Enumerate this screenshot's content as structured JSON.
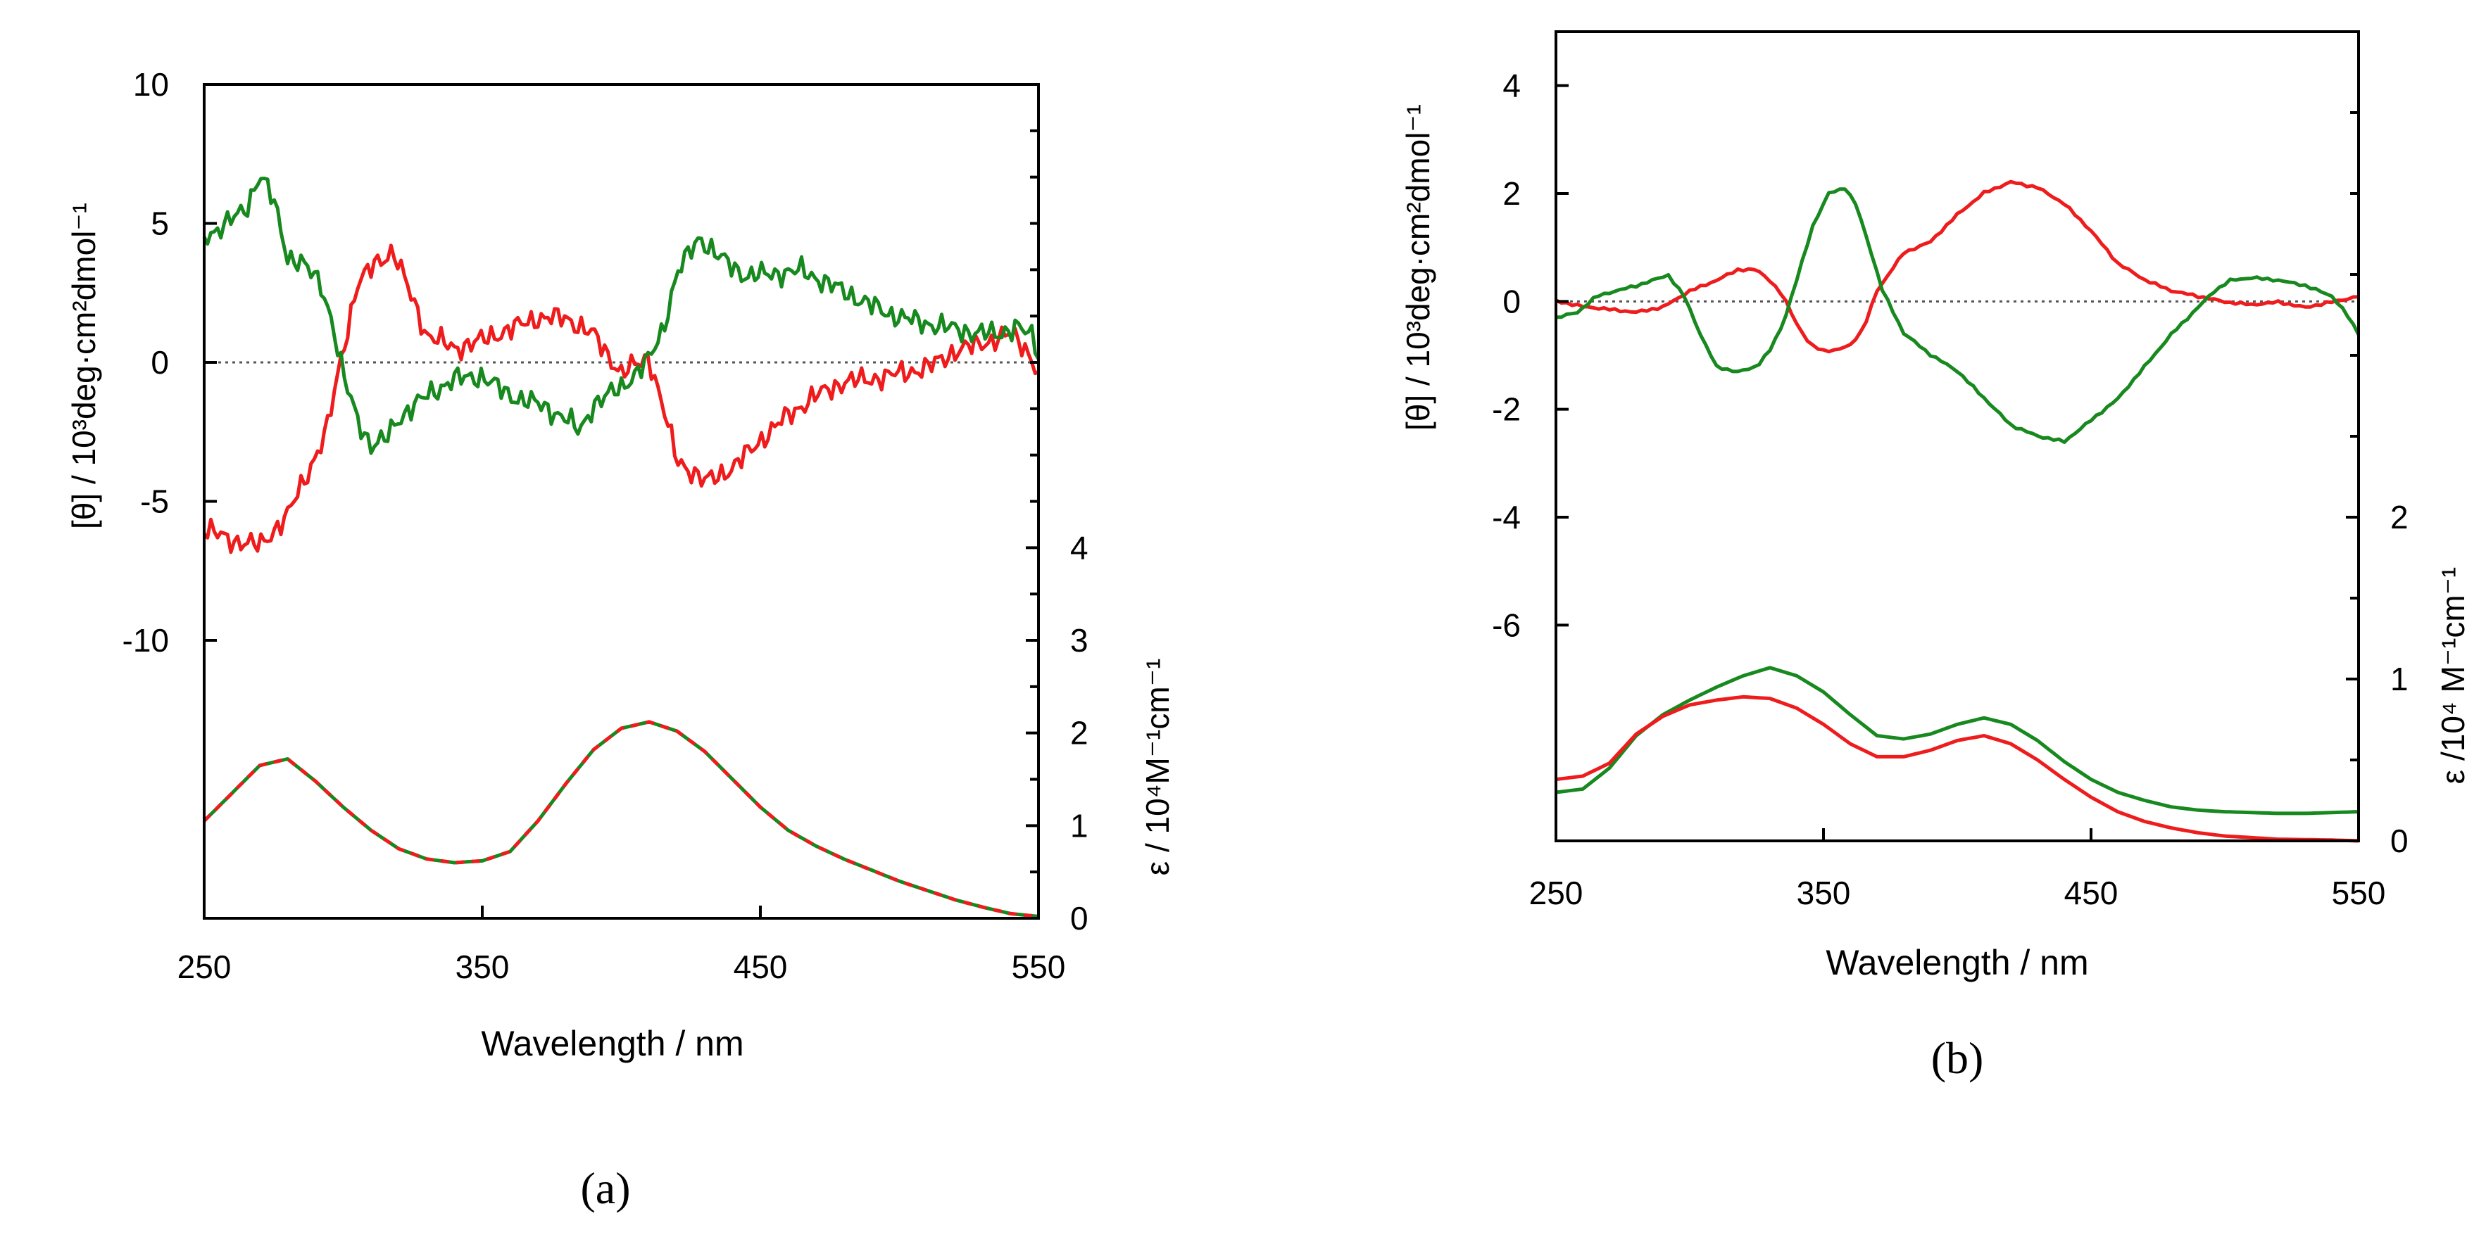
{
  "chart_data": [
    {
      "type": "line",
      "panel_label": "(a)",
      "xlabel": "Wavelength / nm",
      "ylabel_left": "[θ] / 10³deg·cm²dmol⁻¹",
      "ylabel_right": "ε / 10⁴M⁻¹cm⁻¹",
      "xlim": [
        250,
        550
      ],
      "xticks": [
        "250",
        "350",
        "450",
        "550"
      ],
      "ylim_left": [
        -20,
        10
      ],
      "yticks_left": [
        "10",
        "5",
        "0",
        "-5",
        "-10"
      ],
      "ylim_right": [
        0,
        9
      ],
      "yticks_right": [
        "0",
        "1",
        "2",
        "3",
        "4"
      ],
      "zero_line": 0,
      "colors": {
        "red": "#ee1c1c",
        "green": "#17891f"
      },
      "cd_series": [
        {
          "name": "red CD",
          "color": "#ee1c1c",
          "x": [
            250,
            260,
            270,
            280,
            288,
            294,
            300,
            305,
            312,
            318,
            322,
            330,
            340,
            350,
            360,
            370,
            380,
            390,
            400,
            410,
            420,
            430,
            440,
            450,
            460,
            470,
            480,
            490,
            500,
            510,
            520,
            530,
            540,
            545,
            550
          ],
          "y": [
            -6.0,
            -6.4,
            -6.6,
            -5.5,
            -3.8,
            -2.5,
            0.5,
            2.8,
            3.6,
            4.0,
            3.0,
            1.0,
            0.5,
            0.8,
            1.2,
            1.6,
            1.6,
            1.0,
            -0.4,
            0.2,
            -3.5,
            -4.3,
            -3.8,
            -2.8,
            -1.9,
            -1.2,
            -0.7,
            -0.6,
            -0.4,
            -0.2,
            0.4,
            0.7,
            1.0,
            0.6,
            -0.4
          ]
        },
        {
          "name": "green CD",
          "color": "#17891f",
          "x": [
            250,
            258,
            265,
            270,
            275,
            280,
            285,
            292,
            296,
            300,
            305,
            310,
            315,
            320,
            330,
            340,
            350,
            360,
            370,
            380,
            385,
            390,
            400,
            410,
            415,
            420,
            428,
            435,
            445,
            455,
            465,
            475,
            485,
            495,
            505,
            515,
            525,
            535,
            542,
            548,
            550
          ],
          "y": [
            4.5,
            5.0,
            5.5,
            6.8,
            5.8,
            3.8,
            3.6,
            2.8,
            1.5,
            -0.5,
            -2.0,
            -3.0,
            -2.8,
            -2.0,
            -1.2,
            -0.6,
            -0.5,
            -1.2,
            -1.5,
            -2.0,
            -2.5,
            -1.5,
            -0.9,
            0.1,
            1.2,
            3.2,
            4.5,
            3.8,
            3.1,
            3.2,
            3.3,
            2.8,
            2.3,
            1.8,
            1.5,
            1.3,
            1.1,
            1.0,
            1.3,
            0.9,
            0.3
          ]
        }
      ],
      "abs_series": [
        {
          "name": "green absorption",
          "color": "#17891f",
          "style": "solid",
          "x": [
            250,
            260,
            270,
            280,
            290,
            300,
            310,
            320,
            330,
            340,
            350,
            360,
            370,
            380,
            390,
            400,
            410,
            420,
            430,
            440,
            450,
            460,
            470,
            480,
            490,
            500,
            510,
            520,
            530,
            540,
            550
          ],
          "y": [
            1.05,
            1.35,
            1.65,
            1.72,
            1.48,
            1.2,
            0.95,
            0.75,
            0.64,
            0.6,
            0.62,
            0.72,
            1.05,
            1.45,
            1.82,
            2.05,
            2.12,
            2.02,
            1.8,
            1.5,
            1.2,
            0.95,
            0.78,
            0.64,
            0.52,
            0.4,
            0.3,
            0.2,
            0.12,
            0.05,
            0.02
          ]
        },
        {
          "name": "red absorption",
          "color": "#ee1c1c",
          "style": "dashed",
          "x": [
            250,
            260,
            270,
            280,
            290,
            300,
            310,
            320,
            330,
            340,
            350,
            360,
            370,
            380,
            390,
            400,
            410,
            420,
            430,
            440,
            450,
            460,
            470,
            480,
            490,
            500,
            510,
            520,
            530,
            540,
            550
          ],
          "y": [
            1.05,
            1.35,
            1.65,
            1.72,
            1.48,
            1.2,
            0.95,
            0.75,
            0.64,
            0.6,
            0.62,
            0.72,
            1.05,
            1.45,
            1.82,
            2.05,
            2.12,
            2.02,
            1.8,
            1.5,
            1.2,
            0.95,
            0.78,
            0.64,
            0.52,
            0.4,
            0.3,
            0.2,
            0.12,
            0.05,
            0.02
          ]
        }
      ]
    },
    {
      "type": "line",
      "panel_label": "(b)",
      "xlabel": "Wavelength / nm",
      "ylabel_left": "[θ] / 10³deg·cm²dmol⁻¹",
      "ylabel_right": "ε /10⁴ M⁻¹cm⁻¹",
      "xlim": [
        250,
        550
      ],
      "xticks": [
        "250",
        "350",
        "450",
        "550"
      ],
      "ylim_left": [
        -10,
        5
      ],
      "yticks_left": [
        "4",
        "2",
        "0",
        "-2",
        "-4",
        "-6"
      ],
      "ylim_right": [
        0,
        5
      ],
      "yticks_right": [
        "0",
        "1",
        "2"
      ],
      "zero_line": 0,
      "cd_series": [
        {
          "name": "red CD",
          "color": "#ee1c1c",
          "x": [
            250,
            260,
            270,
            280,
            290,
            300,
            310,
            318,
            325,
            330,
            335,
            340,
            345,
            350,
            355,
            360,
            365,
            370,
            380,
            390,
            400,
            410,
            420,
            430,
            440,
            450,
            460,
            470,
            480,
            490,
            500,
            510,
            520,
            530,
            540,
            550
          ],
          "y": [
            0.0,
            -0.1,
            -0.15,
            -0.2,
            -0.1,
            0.2,
            0.4,
            0.6,
            0.6,
            0.4,
            0.1,
            -0.4,
            -0.8,
            -0.9,
            -0.9,
            -0.8,
            -0.5,
            0.2,
            0.9,
            1.1,
            1.6,
            2.0,
            2.2,
            2.1,
            1.8,
            1.3,
            0.7,
            0.4,
            0.2,
            0.1,
            0.0,
            -0.05,
            0.0,
            -0.1,
            0.0,
            0.1
          ]
        },
        {
          "name": "green CD",
          "color": "#17891f",
          "x": [
            250,
            258,
            265,
            272,
            280,
            286,
            292,
            298,
            304,
            310,
            318,
            325,
            330,
            335,
            340,
            346,
            352,
            358,
            362,
            366,
            372,
            380,
            390,
            400,
            410,
            420,
            430,
            440,
            450,
            460,
            470,
            480,
            490,
            496,
            502,
            510,
            520,
            530,
            540,
            545,
            550
          ],
          "y": [
            -0.3,
            -0.2,
            0.1,
            0.2,
            0.3,
            0.4,
            0.5,
            0.1,
            -0.6,
            -1.2,
            -1.3,
            -1.2,
            -0.9,
            -0.4,
            0.4,
            1.4,
            2.0,
            2.1,
            1.8,
            1.2,
            0.2,
            -0.6,
            -1.0,
            -1.3,
            -1.8,
            -2.3,
            -2.5,
            -2.6,
            -2.2,
            -1.8,
            -1.2,
            -0.6,
            -0.1,
            0.2,
            0.4,
            0.45,
            0.4,
            0.3,
            0.1,
            -0.2,
            -0.6
          ]
        }
      ],
      "abs_series": [
        {
          "name": "green absorption",
          "color": "#17891f",
          "x": [
            250,
            260,
            270,
            280,
            290,
            300,
            310,
            320,
            330,
            340,
            350,
            360,
            370,
            380,
            390,
            400,
            410,
            420,
            430,
            440,
            450,
            460,
            470,
            480,
            490,
            500,
            510,
            520,
            530,
            540,
            550
          ],
          "y": [
            0.3,
            0.32,
            0.45,
            0.65,
            0.78,
            0.87,
            0.95,
            1.02,
            1.07,
            1.02,
            0.92,
            0.78,
            0.65,
            0.63,
            0.66,
            0.72,
            0.76,
            0.72,
            0.62,
            0.49,
            0.38,
            0.3,
            0.25,
            0.21,
            0.19,
            0.18,
            0.175,
            0.17,
            0.17,
            0.175,
            0.18
          ]
        },
        {
          "name": "red absorption",
          "color": "#ee1c1c",
          "x": [
            250,
            260,
            270,
            280,
            290,
            300,
            310,
            320,
            330,
            340,
            350,
            360,
            370,
            380,
            390,
            400,
            410,
            420,
            430,
            440,
            450,
            460,
            470,
            480,
            490,
            500,
            510,
            520,
            530,
            540,
            550
          ],
          "y": [
            0.38,
            0.4,
            0.48,
            0.66,
            0.77,
            0.84,
            0.87,
            0.89,
            0.88,
            0.82,
            0.72,
            0.6,
            0.52,
            0.52,
            0.56,
            0.62,
            0.65,
            0.6,
            0.5,
            0.38,
            0.27,
            0.18,
            0.12,
            0.08,
            0.05,
            0.03,
            0.02,
            0.01,
            0.008,
            0.005,
            0.0
          ]
        }
      ]
    }
  ]
}
